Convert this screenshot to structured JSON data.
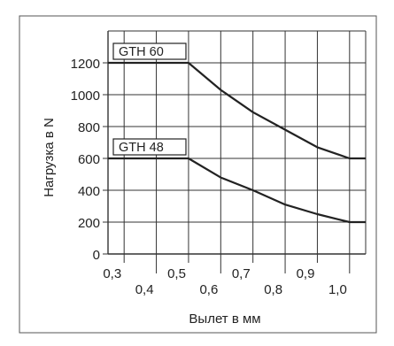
{
  "chart_data": {
    "type": "line",
    "title": "",
    "xlabel": "Вылет в мм",
    "ylabel": "Нагрузка в N",
    "xlim": [
      0.25,
      1.05
    ],
    "ylim": [
      0,
      1400
    ],
    "grid": true,
    "x_ticks": [
      0.3,
      0.4,
      0.5,
      0.6,
      0.7,
      0.8,
      0.9,
      1.0
    ],
    "x_tick_labels": [
      "0,3",
      "0,4",
      "0,5",
      "0,6",
      "0,7",
      "0,8",
      "0,9",
      "1,0"
    ],
    "y_ticks": [
      0,
      200,
      400,
      600,
      800,
      1000,
      1200
    ],
    "y_tick_labels": [
      "0",
      "200",
      "400",
      "600",
      "800",
      "1000",
      "1200"
    ],
    "series": [
      {
        "name": "GTH 60",
        "x": [
          0.25,
          0.5,
          0.6,
          0.7,
          0.8,
          0.9,
          1.0,
          1.05
        ],
        "y": [
          1200,
          1200,
          1030,
          890,
          780,
          670,
          600,
          600
        ]
      },
      {
        "name": "GTH 48",
        "x": [
          0.25,
          0.5,
          0.6,
          0.7,
          0.8,
          0.9,
          1.0,
          1.05
        ],
        "y": [
          600,
          600,
          480,
          400,
          310,
          250,
          200,
          200
        ]
      }
    ],
    "colors": {
      "series": "#222222",
      "grid": "#333333",
      "frame": "#555555",
      "label_box_bg": "#ffffff"
    }
  }
}
